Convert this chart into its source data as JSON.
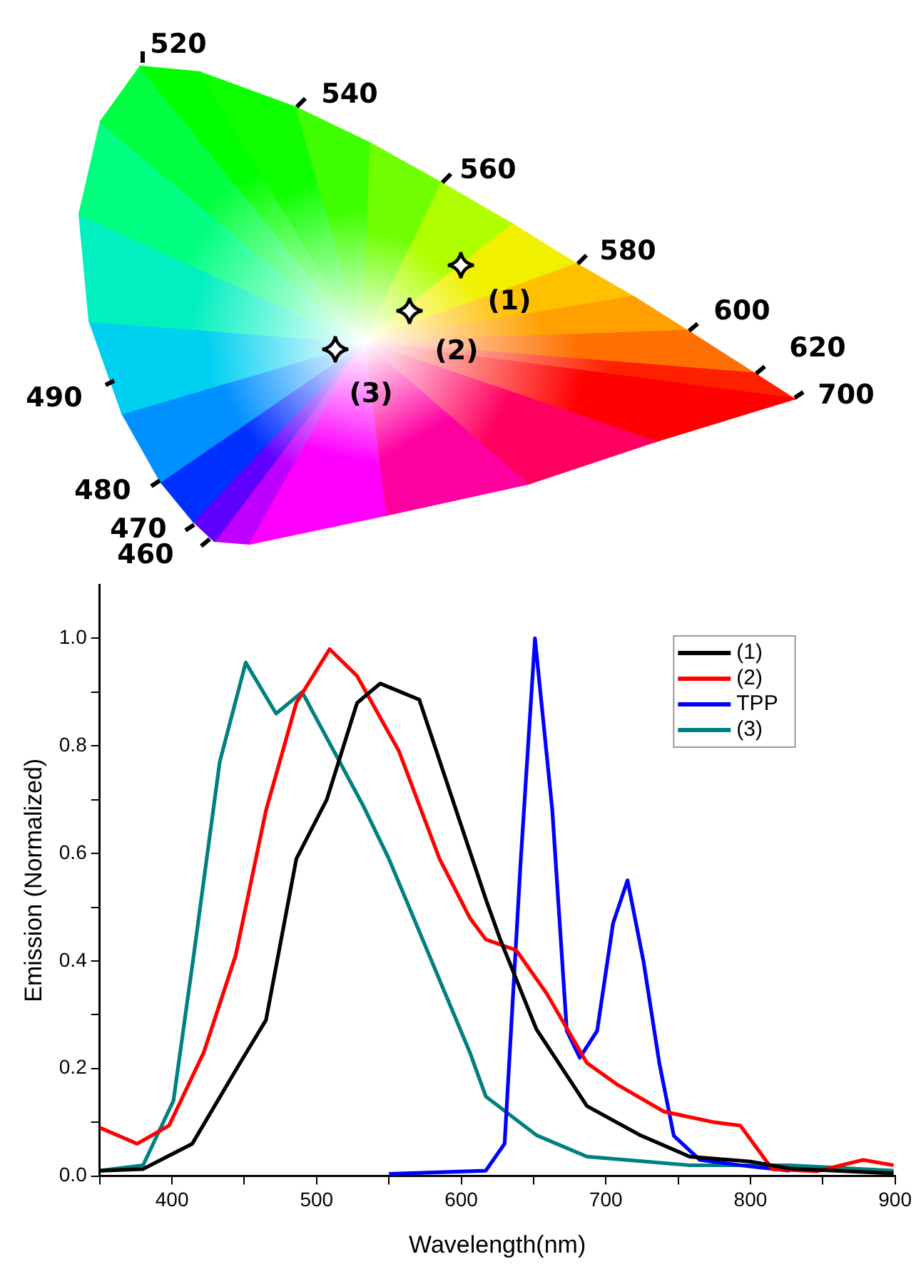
{
  "chart_data": [
    {
      "type": "other",
      "annotations": [
        "520",
        "540",
        "560",
        "580",
        "600",
        "620",
        "700",
        "490",
        "480",
        "470",
        "460",
        "(1)",
        "(2)",
        "(3)"
      ]
    },
    {
      "type": "line",
      "xlabel": "Wavelength(nm)",
      "ylabel": "Emission (Normalized)",
      "xlim": [
        350,
        900
      ],
      "ylim": [
        0,
        1.1
      ],
      "xticks": [
        {
          "value": 350,
          "label": null
        },
        400,
        {
          "value": 450,
          "label": null
        },
        500,
        {
          "value": 550,
          "label": null
        },
        600,
        {
          "value": 650,
          "label": null
        },
        700,
        {
          "value": 750,
          "label": null
        },
        800,
        {
          "value": 850,
          "label": null
        },
        900
      ],
      "yticks": [
        {
          "value": 0,
          "label": "0.0"
        },
        {
          "value": 0.1,
          "label": null
        },
        {
          "value": 0.2,
          "label": "0.2"
        },
        {
          "value": 0.3,
          "label": null
        },
        {
          "value": 0.4,
          "label": "0.4"
        },
        {
          "value": 0.5,
          "label": null
        },
        {
          "value": 0.6,
          "label": "0.6"
        },
        {
          "value": 0.7,
          "label": null
        },
        {
          "value": 0.8,
          "label": "0.8"
        },
        {
          "value": 0.9,
          "label": null
        },
        {
          "value": 1.0,
          "label": "1.0"
        }
      ],
      "grid": false,
      "legend": "top right",
      "marker": "none",
      "line_style": "solid",
      "series": [
        {
          "name": "(1)",
          "color": "#000000",
          "x": [
            350,
            380,
            414,
            447,
            465,
            486,
            507,
            528,
            544,
            571,
            599,
            617,
            627,
            652,
            687,
            723,
            758,
            800,
            827,
            899
          ],
          "values": [
            0.01,
            0.013,
            0.06,
            0.21,
            0.29,
            0.59,
            0.7,
            0.88,
            0.916,
            0.886,
            0.66,
            0.515,
            0.44,
            0.273,
            0.13,
            0.077,
            0.036,
            0.027,
            0.014,
            0.005
          ]
        },
        {
          "name": "(2)",
          "color": "#ff0000",
          "x": [
            350,
            376,
            398,
            422,
            444,
            465,
            486,
            509,
            528,
            557,
            585,
            606,
            617,
            638,
            659,
            687,
            708,
            740,
            775,
            793,
            815,
            846,
            878,
            899
          ],
          "values": [
            0.09,
            0.06,
            0.094,
            0.23,
            0.41,
            0.68,
            0.88,
            0.98,
            0.93,
            0.79,
            0.59,
            0.48,
            0.44,
            0.42,
            0.34,
            0.21,
            0.17,
            0.12,
            0.1,
            0.094,
            0.013,
            0.009,
            0.03,
            0.02
          ]
        },
        {
          "name": "TPP",
          "color": "#0000ff",
          "x": [
            550,
            617,
            630,
            641,
            651,
            663,
            673,
            682,
            694,
            705,
            715,
            726,
            737,
            747,
            765,
            793,
            827
          ],
          "values": [
            0.004,
            0.01,
            0.06,
            0.58,
            1.0,
            0.68,
            0.27,
            0.22,
            0.27,
            0.47,
            0.55,
            0.4,
            0.21,
            0.075,
            0.03,
            0.02,
            0.01
          ]
        },
        {
          "name": "(3)",
          "color": "#008080",
          "x": [
            350,
            380,
            401,
            415,
            433,
            451,
            472,
            490,
            514,
            532,
            550,
            578,
            606,
            617,
            652,
            687,
            758,
            827,
            899
          ],
          "values": [
            0.01,
            0.02,
            0.14,
            0.41,
            0.77,
            0.955,
            0.86,
            0.9,
            0.78,
            0.69,
            0.59,
            0.41,
            0.23,
            0.148,
            0.076,
            0.036,
            0.02,
            0.02,
            0.01
          ]
        }
      ]
    }
  ]
}
